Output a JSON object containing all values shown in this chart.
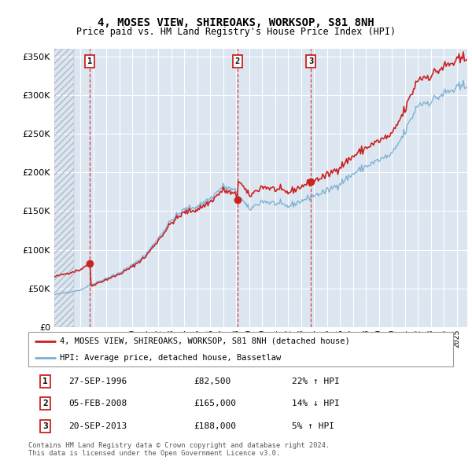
{
  "title": "4, MOSES VIEW, SHIREOAKS, WORKSOP, S81 8NH",
  "subtitle": "Price paid vs. HM Land Registry's House Price Index (HPI)",
  "legend_line1": "4, MOSES VIEW, SHIREOAKS, WORKSOP, S81 8NH (detached house)",
  "legend_line2": "HPI: Average price, detached house, Bassetlaw",
  "footer1": "Contains HM Land Registry data © Crown copyright and database right 2024.",
  "footer2": "This data is licensed under the Open Government Licence v3.0.",
  "transactions": [
    {
      "num": 1,
      "date": "27-SEP-1996",
      "price": 82500,
      "year": 1996.75,
      "pct": "22%",
      "dir": "↑"
    },
    {
      "num": 2,
      "date": "05-FEB-2008",
      "price": 165000,
      "year": 2008.1,
      "pct": "14%",
      "dir": "↓"
    },
    {
      "num": 3,
      "date": "20-SEP-2013",
      "price": 188000,
      "year": 2013.75,
      "pct": "5%",
      "dir": "↑"
    }
  ],
  "hpi_color": "#7bafd4",
  "price_color": "#cc2222",
  "vline_color": "#cc2222",
  "background_color": "#dce6f1",
  "ylim": [
    0,
    360000
  ],
  "xlim_start": 1994.0,
  "xlim_end": 2025.8,
  "hatch_end": 1995.5,
  "hpi_anchors": {
    "1994": 42000,
    "1995": 45000,
    "1996": 48000,
    "1997": 56000,
    "1998": 63000,
    "1999": 70000,
    "2000": 80000,
    "2001": 93000,
    "2002": 115000,
    "2003": 138000,
    "2004": 152000,
    "2005": 156000,
    "2006": 166000,
    "2007": 182000,
    "2008": 175000,
    "2009": 152000,
    "2010": 163000,
    "2011": 160000,
    "2012": 156000,
    "2013": 163000,
    "2014": 170000,
    "2015": 176000,
    "2016": 186000,
    "2017": 198000,
    "2018": 208000,
    "2019": 216000,
    "2020": 223000,
    "2021": 252000,
    "2022": 288000,
    "2023": 292000,
    "2024": 302000,
    "2025": 308000
  },
  "noise_seed": 42,
  "noise_scale": 0.012
}
